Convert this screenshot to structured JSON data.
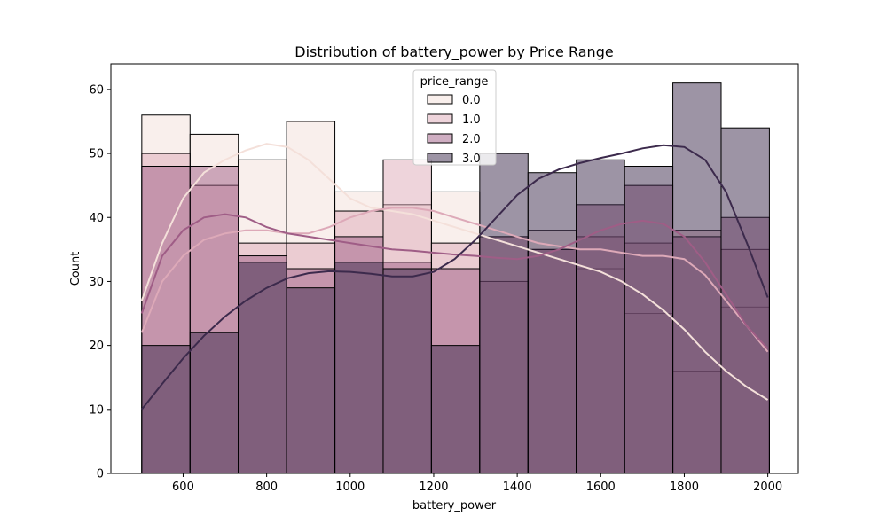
{
  "chart_data": {
    "type": "histogram",
    "title": "Distribution of battery_power by Price Range",
    "xlabel": "battery_power",
    "ylabel": "Count",
    "xlim": [
      427,
      2073
    ],
    "ylim": [
      0,
      64
    ],
    "xticks": [
      600,
      800,
      1000,
      1200,
      1400,
      1600,
      1800,
      2000
    ],
    "yticks": [
      0,
      10,
      20,
      30,
      40,
      50,
      60
    ],
    "grid": false,
    "legend": {
      "title": "price_range",
      "placement": "top-center"
    },
    "bin_edges": [
      501,
      616.6,
      732.2,
      847.8,
      963.4,
      1079,
      1194.6,
      1310.2,
      1425.8,
      1541.4,
      1657,
      1772.6,
      1888.2,
      2003.8
    ],
    "series": [
      {
        "name": "0.0",
        "color": "#f4e0da",
        "values": [
          56,
          53,
          49,
          55,
          44,
          42,
          44,
          37,
          38,
          32,
          25,
          16,
          26
        ],
        "kde": [
          [
            501,
            27
          ],
          [
            550,
            36
          ],
          [
            600,
            43
          ],
          [
            650,
            47
          ],
          [
            700,
            49
          ],
          [
            750,
            50.5
          ],
          [
            800,
            51.5
          ],
          [
            850,
            51
          ],
          [
            900,
            49
          ],
          [
            950,
            46
          ],
          [
            1000,
            43
          ],
          [
            1050,
            41.5
          ],
          [
            1100,
            41
          ],
          [
            1150,
            40.5
          ],
          [
            1200,
            39.5
          ],
          [
            1250,
            38.5
          ],
          [
            1300,
            37.5
          ],
          [
            1350,
            36.5
          ],
          [
            1400,
            35.5
          ],
          [
            1450,
            34.5
          ],
          [
            1500,
            33.5
          ],
          [
            1550,
            32.5
          ],
          [
            1600,
            31.5
          ],
          [
            1650,
            30
          ],
          [
            1700,
            28
          ],
          [
            1750,
            25.5
          ],
          [
            1800,
            22.5
          ],
          [
            1850,
            19
          ],
          [
            1900,
            16
          ],
          [
            1950,
            13.5
          ],
          [
            2000,
            11.5
          ]
        ]
      },
      {
        "name": "1.0",
        "color": "#dda9b8",
        "values": [
          50,
          45,
          36,
          36,
          41,
          49,
          36,
          30,
          35,
          37,
          36,
          38,
          35
        ],
        "kde": [
          [
            501,
            22
          ],
          [
            550,
            30
          ],
          [
            600,
            34
          ],
          [
            650,
            36.5
          ],
          [
            700,
            37.5
          ],
          [
            750,
            38
          ],
          [
            800,
            38
          ],
          [
            850,
            37.5
          ],
          [
            900,
            37.5
          ],
          [
            950,
            38.5
          ],
          [
            1000,
            40
          ],
          [
            1050,
            41
          ],
          [
            1100,
            41.5
          ],
          [
            1150,
            41.5
          ],
          [
            1200,
            41
          ],
          [
            1250,
            40
          ],
          [
            1300,
            39
          ],
          [
            1350,
            38
          ],
          [
            1400,
            37
          ],
          [
            1450,
            36
          ],
          [
            1500,
            35.5
          ],
          [
            1550,
            35
          ],
          [
            1600,
            35
          ],
          [
            1650,
            34.5
          ],
          [
            1700,
            34
          ],
          [
            1750,
            34
          ],
          [
            1800,
            33.5
          ],
          [
            1850,
            31
          ],
          [
            1900,
            27
          ],
          [
            1950,
            23
          ],
          [
            2000,
            19
          ]
        ]
      },
      {
        "name": "2.0",
        "color": "#9f5d86",
        "values": [
          48,
          48,
          34,
          32,
          37,
          33,
          32,
          37,
          35,
          42,
          45,
          37,
          40
        ],
        "kde": [
          [
            501,
            25
          ],
          [
            550,
            34
          ],
          [
            600,
            38
          ],
          [
            650,
            40
          ],
          [
            700,
            40.5
          ],
          [
            750,
            40
          ],
          [
            800,
            38.5
          ],
          [
            850,
            37.5
          ],
          [
            900,
            37
          ],
          [
            950,
            36.5
          ],
          [
            1000,
            36
          ],
          [
            1050,
            35.5
          ],
          [
            1100,
            35
          ],
          [
            1150,
            34.8
          ],
          [
            1200,
            34.5
          ],
          [
            1250,
            34.2
          ],
          [
            1300,
            34
          ],
          [
            1350,
            33.7
          ],
          [
            1400,
            33.5
          ],
          [
            1450,
            34
          ],
          [
            1500,
            35
          ],
          [
            1550,
            36.5
          ],
          [
            1600,
            38
          ],
          [
            1650,
            39
          ],
          [
            1700,
            39.5
          ],
          [
            1750,
            39
          ],
          [
            1800,
            37
          ],
          [
            1850,
            33
          ],
          [
            1900,
            28
          ],
          [
            1950,
            23
          ],
          [
            2000,
            19.5
          ]
        ]
      },
      {
        "name": "3.0",
        "color": "#3c2a4c",
        "values": [
          20,
          22,
          33,
          29,
          33,
          32,
          20,
          50,
          47,
          49,
          48,
          61,
          54
        ],
        "kde": [
          [
            501,
            10
          ],
          [
            550,
            14
          ],
          [
            600,
            18
          ],
          [
            650,
            21.5
          ],
          [
            700,
            24.5
          ],
          [
            750,
            27
          ],
          [
            800,
            29
          ],
          [
            850,
            30.5
          ],
          [
            900,
            31.3
          ],
          [
            950,
            31.6
          ],
          [
            1000,
            31.5
          ],
          [
            1050,
            31.2
          ],
          [
            1100,
            30.8
          ],
          [
            1150,
            30.8
          ],
          [
            1200,
            31.5
          ],
          [
            1250,
            33.5
          ],
          [
            1300,
            36.5
          ],
          [
            1350,
            40
          ],
          [
            1400,
            43.5
          ],
          [
            1450,
            46
          ],
          [
            1500,
            47.5
          ],
          [
            1550,
            48.5
          ],
          [
            1600,
            49.3
          ],
          [
            1650,
            50
          ],
          [
            1700,
            50.8
          ],
          [
            1750,
            51.3
          ],
          [
            1800,
            51
          ],
          [
            1850,
            49
          ],
          [
            1900,
            44
          ],
          [
            1950,
            36
          ],
          [
            2000,
            27.5
          ]
        ]
      }
    ]
  }
}
